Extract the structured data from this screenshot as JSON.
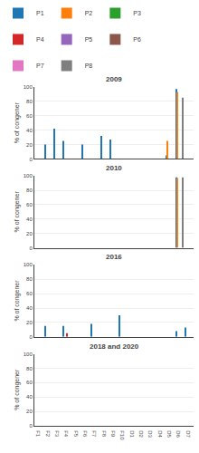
{
  "chart_data": [
    {
      "type": "bar",
      "title": "2009",
      "ylabel": "% of congener",
      "categories": [
        "F1",
        "F2",
        "F3",
        "F4",
        "F5",
        "F6",
        "F7",
        "F8",
        "F9",
        "F10",
        "D1",
        "D2",
        "D3",
        "D4",
        "D5",
        "D6",
        "D7"
      ],
      "series": [
        {
          "name": "P1",
          "values": [
            0,
            20,
            42,
            25,
            0,
            20,
            0,
            32,
            27,
            0,
            0,
            0,
            0,
            0,
            5,
            97,
            0
          ]
        },
        {
          "name": "P2",
          "values": [
            0,
            0,
            0,
            0,
            0,
            0,
            0,
            0,
            0,
            0,
            0,
            0,
            0,
            0,
            25,
            93,
            0
          ]
        },
        {
          "name": "P3",
          "values": [
            0,
            0,
            0,
            0,
            0,
            0,
            0,
            0,
            0,
            0,
            0,
            0,
            0,
            0,
            0,
            0,
            0
          ]
        },
        {
          "name": "P4",
          "values": [
            0,
            0,
            0,
            0,
            0,
            0,
            0,
            0,
            0,
            0,
            0,
            0,
            0,
            0,
            0,
            0,
            0
          ]
        },
        {
          "name": "P5",
          "values": [
            0,
            0,
            0,
            0,
            0,
            0,
            0,
            0,
            0,
            0,
            0,
            0,
            0,
            0,
            0,
            0,
            0
          ]
        },
        {
          "name": "P6",
          "values": [
            0,
            0,
            0,
            0,
            0,
            0,
            0,
            0,
            0,
            0,
            0,
            0,
            0,
            0,
            0,
            0,
            0
          ]
        },
        {
          "name": "P7",
          "values": [
            0,
            0,
            0,
            0,
            0,
            0,
            0,
            0,
            0,
            0,
            0,
            0,
            0,
            0,
            0,
            0,
            0
          ]
        },
        {
          "name": "P8",
          "values": [
            0,
            0,
            0,
            0,
            0,
            0,
            0,
            0,
            0,
            0,
            0,
            0,
            0,
            0,
            0,
            85,
            0
          ]
        }
      ],
      "ylim": [
        0,
        100
      ],
      "yticks": [
        0,
        20,
        40,
        60,
        80,
        100
      ],
      "grid": true,
      "legend": "top",
      "tick_labels": "y"
    },
    {
      "type": "bar",
      "title": "2010",
      "ylabel": "% of congener",
      "categories": [
        "F1",
        "F2",
        "F3",
        "F4",
        "F5",
        "F6",
        "F7",
        "F8",
        "F9",
        "F10",
        "D1",
        "D2",
        "D3",
        "D4",
        "D5",
        "D6",
        "D7"
      ],
      "series": [
        {
          "name": "P1",
          "values": [
            0,
            0,
            0,
            0,
            0,
            0,
            0,
            0,
            0,
            0,
            0,
            0,
            0,
            0,
            0,
            98,
            0
          ]
        },
        {
          "name": "P2",
          "values": [
            0,
            0,
            0,
            0,
            0,
            0,
            0,
            0,
            0,
            0,
            0,
            0,
            0,
            0,
            0,
            97,
            0
          ]
        },
        {
          "name": "P3",
          "values": [
            0,
            0,
            0,
            0,
            0,
            0,
            0,
            0,
            0,
            0,
            0,
            0,
            0,
            0,
            0,
            0,
            0
          ]
        },
        {
          "name": "P4",
          "values": [
            0,
            0,
            0,
            0,
            0,
            0,
            0,
            0,
            0,
            0,
            0,
            0,
            0,
            0,
            0,
            0,
            0
          ]
        },
        {
          "name": "P5",
          "values": [
            0,
            0,
            0,
            0,
            0,
            0,
            0,
            0,
            0,
            0,
            0,
            0,
            0,
            0,
            0,
            0,
            0
          ]
        },
        {
          "name": "P6",
          "values": [
            0,
            0,
            0,
            0,
            0,
            0,
            0,
            0,
            0,
            0,
            0,
            0,
            0,
            0,
            0,
            0,
            0
          ]
        },
        {
          "name": "P7",
          "values": [
            0,
            0,
            0,
            0,
            0,
            0,
            0,
            0,
            0,
            0,
            0,
            0,
            0,
            0,
            0,
            0,
            0
          ]
        },
        {
          "name": "P8",
          "values": [
            0,
            0,
            0,
            0,
            0,
            0,
            0,
            0,
            0,
            0,
            0,
            0,
            0,
            0,
            0,
            98,
            0
          ]
        }
      ],
      "ylim": [
        0,
        100
      ],
      "yticks": [
        0,
        20,
        40,
        60,
        80,
        100
      ],
      "grid": true,
      "tick_labels": "y"
    },
    {
      "type": "bar",
      "title": "2016",
      "ylabel": "% of congener",
      "categories": [
        "F1",
        "F2",
        "F3",
        "F4",
        "F5",
        "F6",
        "F7",
        "F8",
        "F9",
        "F10",
        "D1",
        "D2",
        "D3",
        "D4",
        "D5",
        "D6",
        "D7"
      ],
      "series": [
        {
          "name": "P1",
          "values": [
            0,
            15,
            0,
            15,
            0,
            0,
            18,
            0,
            0,
            30,
            0,
            0,
            0,
            0,
            0,
            8,
            13
          ]
        },
        {
          "name": "P2",
          "values": [
            0,
            0,
            0,
            0,
            0,
            0,
            0,
            0,
            0,
            0,
            0,
            0,
            0,
            0,
            0,
            0,
            0
          ]
        },
        {
          "name": "P3",
          "values": [
            0,
            0,
            0,
            0,
            0,
            0,
            0,
            0,
            0,
            0,
            0,
            0,
            0,
            0,
            0,
            0,
            0
          ]
        },
        {
          "name": "P4",
          "values": [
            0,
            0,
            0,
            5,
            0,
            0,
            0,
            0,
            0,
            0,
            0,
            0,
            0,
            0,
            0,
            0,
            0
          ]
        },
        {
          "name": "P5",
          "values": [
            0,
            0,
            0,
            0,
            0,
            0,
            0,
            0,
            0,
            0,
            0,
            0,
            0,
            0,
            0,
            0,
            0
          ]
        },
        {
          "name": "P6",
          "values": [
            0,
            0,
            0,
            0,
            0,
            0,
            0,
            0,
            0,
            0,
            0,
            0,
            0,
            0,
            0,
            0,
            0
          ]
        },
        {
          "name": "P7",
          "values": [
            0,
            0,
            0,
            0,
            0,
            0,
            0,
            0,
            0,
            0,
            0,
            0,
            0,
            0,
            0,
            0,
            0
          ]
        },
        {
          "name": "P8",
          "values": [
            0,
            0,
            0,
            0,
            0,
            0,
            0,
            0,
            0,
            0,
            0,
            0,
            0,
            0,
            0,
            0,
            0
          ]
        }
      ],
      "ylim": [
        0,
        100
      ],
      "yticks": [
        0,
        20,
        40,
        60,
        80,
        100
      ],
      "grid": true,
      "tick_labels": "y"
    },
    {
      "type": "bar",
      "title": "2018 and 2020",
      "ylabel": "% of congener",
      "categories": [
        "F1",
        "F2",
        "F3",
        "F4",
        "F5",
        "F6",
        "F7",
        "F8",
        "F9",
        "F10",
        "D1",
        "D2",
        "D3",
        "D4",
        "D5",
        "D6",
        "D7"
      ],
      "series": [
        {
          "name": "P1",
          "values": [
            0,
            0,
            0,
            0,
            0,
            0,
            0,
            0,
            0,
            0,
            0,
            0,
            0,
            0,
            0,
            0,
            0
          ]
        },
        {
          "name": "P2",
          "values": [
            0,
            0,
            0,
            0,
            0,
            0,
            0,
            0,
            0,
            0,
            0,
            0,
            0,
            0,
            0,
            0,
            0
          ]
        },
        {
          "name": "P3",
          "values": [
            0,
            0,
            0,
            0,
            0,
            0,
            0,
            0,
            0,
            0,
            0,
            0,
            0,
            0,
            0,
            0,
            0
          ]
        },
        {
          "name": "P4",
          "values": [
            0,
            0,
            0,
            0,
            0,
            0,
            0,
            0,
            0,
            0,
            0,
            0,
            0,
            0,
            0,
            0,
            0
          ]
        },
        {
          "name": "P5",
          "values": [
            0,
            0,
            0,
            0,
            0,
            0,
            0,
            0,
            0,
            0,
            0,
            0,
            0,
            0,
            0,
            0,
            0
          ]
        },
        {
          "name": "P6",
          "values": [
            0,
            0,
            0,
            0,
            0,
            0,
            0,
            0,
            0,
            0,
            0,
            0,
            0,
            0,
            0,
            0,
            0
          ]
        },
        {
          "name": "P7",
          "values": [
            0,
            0,
            0,
            0,
            0,
            0,
            0,
            0,
            0,
            0,
            0,
            0,
            0,
            0,
            0,
            0,
            0
          ]
        },
        {
          "name": "P8",
          "values": [
            0,
            0,
            0,
            0,
            0,
            0,
            0,
            0,
            0,
            0,
            0,
            0,
            0,
            0,
            0,
            0,
            0
          ]
        }
      ],
      "ylim": [
        0,
        100
      ],
      "yticks": [
        0,
        20,
        40,
        60,
        80,
        100
      ],
      "grid": true
    }
  ]
}
